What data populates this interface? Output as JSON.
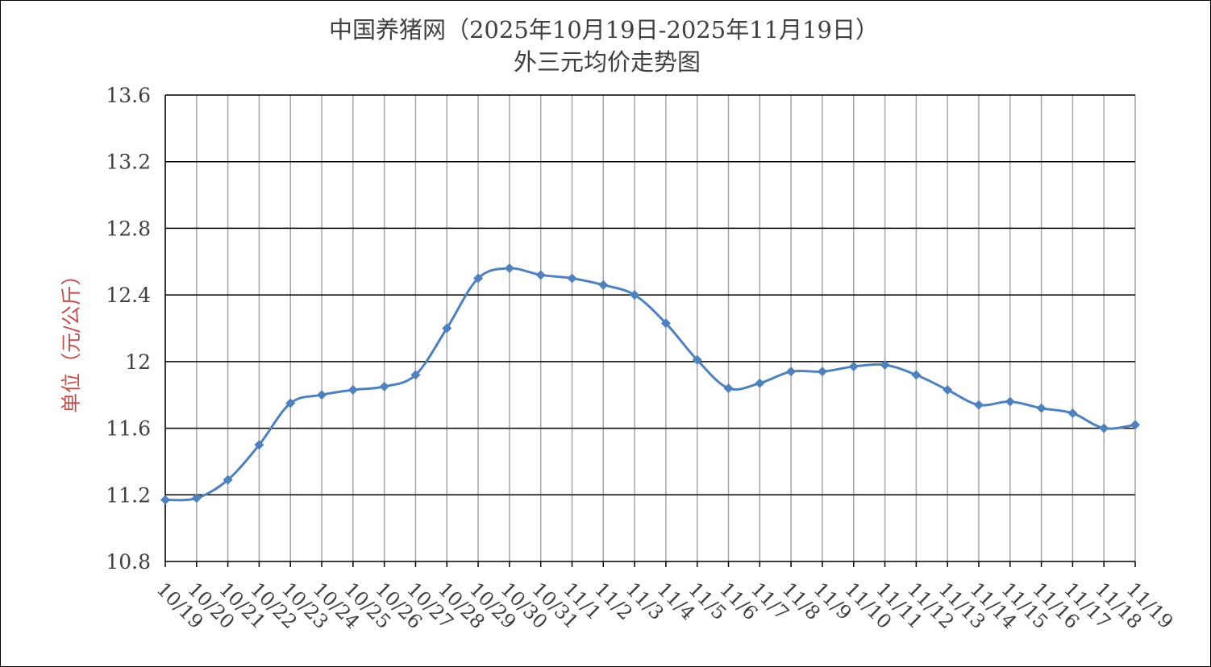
{
  "chart_data": {
    "type": "line",
    "title": "中国养猪网（2025年10月19日-2025年11月19日）",
    "subtitle": "外三元均价走势图",
    "xlabel": "",
    "ylabel": "单位（元/公斤）",
    "ylim": [
      10.8,
      13.6
    ],
    "yticks": [
      "10.8",
      "11.2",
      "11.6",
      "12",
      "12.4",
      "12.8",
      "13.2",
      "13.6"
    ],
    "grid": "on",
    "legend": "none",
    "line_color": "#4f81bd",
    "ylabel_color": "#c0504d",
    "categories": [
      "10/19",
      "10/20",
      "10/21",
      "10/22",
      "10/23",
      "10/24",
      "10/25",
      "10/26",
      "10/27",
      "10/28",
      "10/29",
      "10/30",
      "10/31",
      "11/1",
      "11/2",
      "11/3",
      "11/4",
      "11/5",
      "11/6",
      "11/7",
      "11/8",
      "11/9",
      "11/10",
      "11/11",
      "11/12",
      "11/13",
      "11/14",
      "11/15",
      "11/16",
      "11/17",
      "11/18",
      "11/19"
    ],
    "values": [
      11.17,
      11.18,
      11.29,
      11.5,
      11.75,
      11.8,
      11.83,
      11.85,
      11.92,
      12.2,
      12.5,
      12.56,
      12.52,
      12.5,
      12.46,
      12.4,
      12.23,
      12.01,
      11.84,
      11.87,
      11.94,
      11.94,
      11.97,
      11.98,
      11.92,
      11.83,
      11.74,
      11.76,
      11.72,
      11.69,
      11.6,
      11.62
    ]
  }
}
